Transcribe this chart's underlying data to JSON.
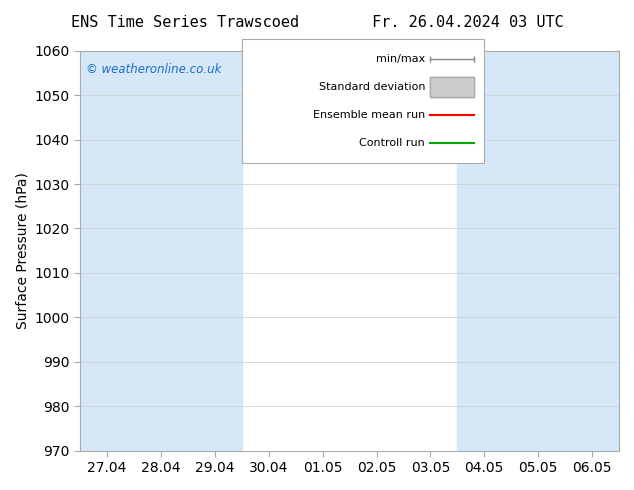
{
  "title": "ENS Time Series Trawscoed",
  "title_right": "Fr. 26.04.2024 03 UTC",
  "ylabel": "Surface Pressure (hPa)",
  "ylim": [
    970,
    1060
  ],
  "yticks": [
    970,
    980,
    990,
    1000,
    1010,
    1020,
    1030,
    1040,
    1050,
    1060
  ],
  "xtick_labels": [
    "27.04",
    "28.04",
    "29.04",
    "30.04",
    "01.05",
    "02.05",
    "03.05",
    "04.05",
    "05.05",
    "06.05"
  ],
  "xtick_positions": [
    0,
    1,
    2,
    3,
    4,
    5,
    6,
    7,
    8,
    9
  ],
  "shade_positions": [
    0,
    1,
    2,
    7,
    8,
    9
  ],
  "shade_color": "#d6e8f7",
  "bg_color": "#ffffff",
  "plot_bg_color": "#ffffff",
  "watermark": "© weatheronline.co.uk",
  "watermark_color": "#1a6cc4",
  "legend_items": [
    "min/max",
    "Standard deviation",
    "Ensemble mean run",
    "Controll run"
  ],
  "legend_colors": [
    "#aaaaaa",
    "#cccccc",
    "#ff0000",
    "#00aa00"
  ],
  "border_color": "#aaaaaa",
  "tick_color": "#000000",
  "font_size": 10,
  "title_fontsize": 11
}
